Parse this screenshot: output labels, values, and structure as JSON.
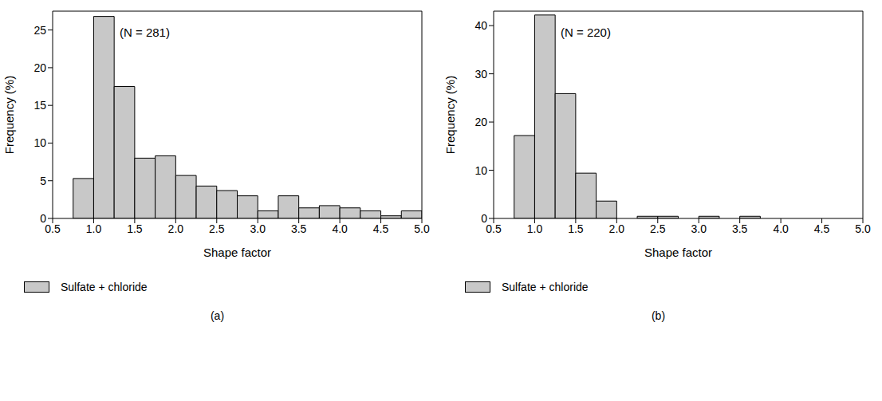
{
  "chart_data": [
    {
      "type": "histogram",
      "panel": "(a)",
      "annotation": "(N = 281)",
      "x_label": "Shape factor",
      "y_label": "Frequency (%)",
      "bins": [
        0.75,
        1.0,
        1.25,
        1.5,
        1.75,
        2.0,
        2.25,
        2.5,
        2.75,
        3.0,
        3.25,
        3.5,
        3.75,
        4.0,
        4.25,
        4.5,
        4.75,
        5.0
      ],
      "series": [
        {
          "name": "Sulfate + chloride",
          "color": "#c8c8c8",
          "values": [
            5.3,
            26.8,
            17.5,
            8.0,
            8.3,
            5.7,
            4.3,
            3.7,
            3.0,
            1.0,
            3.0,
            1.4,
            1.7,
            1.4,
            1.0,
            0.35,
            1.0
          ]
        }
      ],
      "xlim": [
        0.5,
        5.0
      ],
      "ylim": [
        0,
        27.5
      ],
      "xticks": [
        0.5,
        {
          "value": 1,
          "label": "1.0"
        },
        1.5,
        {
          "value": 2,
          "label": "2.0"
        },
        2.5,
        {
          "value": 3,
          "label": "3.0"
        },
        3.5,
        {
          "value": 4,
          "label": "4.0"
        },
        4.5,
        {
          "value": 5,
          "label": "5.0"
        }
      ],
      "yticks": [
        0,
        5,
        10,
        15,
        20,
        25
      ],
      "legend": "bottom"
    },
    {
      "type": "histogram",
      "panel": "(b)",
      "annotation": "(N = 220)",
      "x_label": "Shape factor",
      "y_label": "Frequency (%)",
      "bins": [
        0.75,
        1.0,
        1.25,
        1.5,
        1.75,
        2.0,
        2.25,
        2.5,
        2.75,
        3.0,
        3.25,
        3.5,
        3.75,
        4.0,
        4.25,
        4.5,
        4.75,
        5.0
      ],
      "series": [
        {
          "name": "Sulfate + chloride",
          "color": "#c8c8c8",
          "values": [
            17.2,
            42.2,
            25.9,
            9.4,
            3.6,
            0,
            0.45,
            0.45,
            0,
            0.45,
            0,
            0.45,
            0,
            0,
            0,
            0,
            0
          ]
        }
      ],
      "xlim": [
        0.5,
        5.0
      ],
      "ylim": [
        0,
        43
      ],
      "xticks": [
        0.5,
        {
          "value": 1,
          "label": "1.0"
        },
        1.5,
        {
          "value": 2,
          "label": "2.0"
        },
        2.5,
        {
          "value": 3,
          "label": "3.0"
        },
        3.5,
        {
          "value": 4,
          "label": "4.0"
        },
        4.5,
        {
          "value": 5,
          "label": "5.0"
        }
      ],
      "yticks": [
        0,
        10,
        20,
        30,
        40
      ],
      "legend": "bottom"
    }
  ]
}
